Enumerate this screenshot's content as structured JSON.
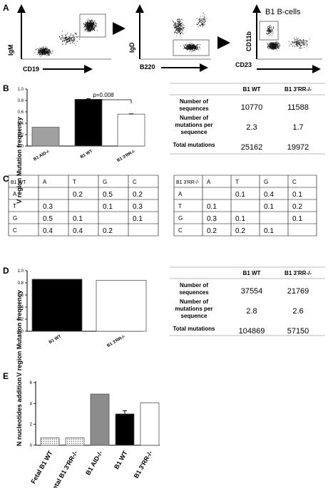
{
  "panels": {
    "A": {
      "letter": "A",
      "plot1": {
        "y": "IgM",
        "x": "CD19"
      },
      "plot2": {
        "y": "IgD",
        "x": "B220"
      },
      "plot3": {
        "y": "CD11b",
        "x": "CD23",
        "title": "B1 B-cells"
      }
    },
    "B": {
      "letter": "B",
      "ylabel": "V region Mutation frequency",
      "pvalue": "p=0.008",
      "ticks": [
        "0.0",
        "0.2",
        "0.4",
        "0.6",
        "0.8",
        "1.0"
      ],
      "bars": [
        {
          "label": "B1 AID-/-",
          "value": 0.33,
          "fill": "#a0a0a0"
        },
        {
          "label": "B1 WT",
          "value": 0.82,
          "fill": "#000000"
        },
        {
          "label": "B1 3'RR-/-",
          "value": 0.56,
          "fill": "#ffffff"
        }
      ],
      "table": {
        "headers": [
          "",
          "B1 WT",
          "B1 3'RR-/-"
        ],
        "rows": [
          {
            "label": "Number of sequences",
            "wt": "10770",
            "rr": "11588"
          },
          {
            "label": "Number of mutations per sequence",
            "wt": "2.3",
            "rr": "1.7"
          },
          {
            "label": "Total mutations",
            "wt": "25162",
            "rr": "19972"
          }
        ]
      }
    },
    "C": {
      "letter": "C",
      "left": {
        "corner": "B1 WT",
        "cols": [
          "A",
          "T",
          "G",
          "C"
        ],
        "rows": [
          {
            "r": "A",
            "v": [
              "",
              "0.2",
              "0.5",
              "0.2"
            ]
          },
          {
            "r": "T",
            "v": [
              "0.3",
              "",
              "0.1",
              "0.3"
            ]
          },
          {
            "r": "G",
            "v": [
              "0.5",
              "0.1",
              "",
              "0.1"
            ]
          },
          {
            "r": "C",
            "v": [
              "0.4",
              "0.4",
              "0.2",
              ""
            ]
          }
        ]
      },
      "right": {
        "corner": "B1 3'RR-/-",
        "cols": [
          "A",
          "T",
          "G",
          "C"
        ],
        "rows": [
          {
            "r": "A",
            "v": [
              "",
              "0.1",
              "0.4",
              "0.1"
            ]
          },
          {
            "r": "T",
            "v": [
              "0.1",
              "",
              "0.1",
              "0.2"
            ]
          },
          {
            "r": "G",
            "v": [
              "0.3",
              "0.1",
              "",
              "0.1"
            ]
          },
          {
            "r": "C",
            "v": [
              "0.2",
              "0.2",
              "0.1",
              ""
            ]
          }
        ]
      }
    },
    "D": {
      "letter": "D",
      "ylabel": "V region Mutation frequency",
      "ticks": [
        "0.0",
        "0.2",
        "0.4",
        "0.6",
        "0.8",
        "1.0"
      ],
      "bars": [
        {
          "label": "B1 WT",
          "value": 0.86,
          "fill": "#000000"
        },
        {
          "label": "B1 3'RR-/-",
          "value": 0.84,
          "fill": "#ffffff"
        }
      ],
      "table": {
        "headers": [
          "",
          "B1 WT",
          "B1 3'RR-/-"
        ],
        "rows": [
          {
            "label": "Number of sequences",
            "wt": "37554",
            "rr": "21769"
          },
          {
            "label": "Number of mutations per sequence",
            "wt": "2.8",
            "rr": "2.6"
          },
          {
            "label": "Total mutations",
            "wt": "104869",
            "rr": "57150"
          }
        ]
      }
    },
    "E": {
      "letter": "E",
      "ylabel": "N nucleotides addition",
      "ticks": [
        "0",
        "2",
        "4",
        "6"
      ],
      "bars": [
        {
          "label": "Fetal B1 WT",
          "value": 0.7,
          "fill": "dotted"
        },
        {
          "label": "Fetal B1 3'RR-/-",
          "value": 0.7,
          "fill": "dotted"
        },
        {
          "label": "B1 AID-/-",
          "value": 4.9,
          "fill": "#8c8c8c"
        },
        {
          "label": "B1 WT",
          "value": 3.0,
          "fill": "#000000"
        },
        {
          "label": "B1 3'RR-/-",
          "value": 4.05,
          "fill": "#ffffff"
        }
      ]
    }
  },
  "chart_data": [
    {
      "type": "bar",
      "categories": [
        "B1 AID-/-",
        "B1 WT",
        "B1 3'RR-/-"
      ],
      "values": [
        0.33,
        0.82,
        0.56
      ],
      "ylabel": "V region Mutation frequency",
      "ylim": [
        0,
        1.0
      ],
      "annotation": "p=0.008"
    },
    {
      "type": "bar",
      "categories": [
        "B1 WT",
        "B1 3'RR-/-"
      ],
      "values": [
        0.86,
        0.84
      ],
      "ylabel": "V region Mutation frequency",
      "ylim": [
        0,
        1.0
      ]
    },
    {
      "type": "bar",
      "categories": [
        "Fetal B1 WT",
        "Fetal B1 3'RR-/-",
        "B1 AID-/-",
        "B1 WT",
        "B1 3'RR-/-"
      ],
      "values": [
        0.7,
        0.7,
        4.9,
        3.0,
        4.05
      ],
      "ylabel": "N nucleotides addition",
      "ylim": [
        0,
        6
      ]
    }
  ]
}
